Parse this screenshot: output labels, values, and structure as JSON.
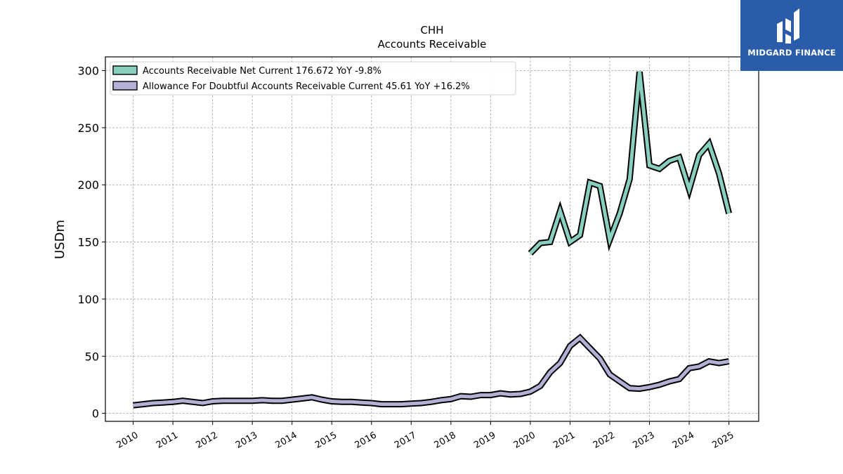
{
  "chart_data": {
    "type": "line",
    "title": "CHH",
    "subtitle": "Accounts Receivable",
    "ylabel": "USDm",
    "xlabel": "",
    "xlim": [
      2009.3,
      2025.75
    ],
    "ylim": [
      -7,
      312
    ],
    "yticks": [
      0,
      50,
      100,
      150,
      200,
      250,
      300
    ],
    "xticks": [
      "2010",
      "2011",
      "2012",
      "2013",
      "2014",
      "2015",
      "2016",
      "2017",
      "2018",
      "2019",
      "2020",
      "2021",
      "2022",
      "2023",
      "2024",
      "2025"
    ],
    "grid": true,
    "legend_position": "top-left",
    "series": [
      {
        "name": "Accounts Receivable Net Current",
        "legend_label": "Accounts Receivable Net Current  176.672 YoY -9.8%",
        "color": "#88cfc0",
        "points": [
          [
            2020.0,
            140
          ],
          [
            2020.25,
            149
          ],
          [
            2020.5,
            150
          ],
          [
            2020.75,
            177
          ],
          [
            2021.0,
            150
          ],
          [
            2021.25,
            156
          ],
          [
            2021.5,
            202
          ],
          [
            2021.75,
            199
          ],
          [
            2022.0,
            152
          ],
          [
            2022.25,
            175
          ],
          [
            2022.5,
            205
          ],
          [
            2022.75,
            299
          ],
          [
            2023.0,
            217
          ],
          [
            2023.25,
            214
          ],
          [
            2023.5,
            221
          ],
          [
            2023.75,
            224
          ],
          [
            2024.0,
            196
          ],
          [
            2024.25,
            226
          ],
          [
            2024.5,
            236
          ],
          [
            2024.75,
            210
          ],
          [
            2025.0,
            175
          ]
        ]
      },
      {
        "name": "Allowance For Doubtful Accounts Receivable Current",
        "legend_label": "Allowance For Doubtful Accounts Receivable Current  45.61 YoY +16.2%",
        "color": "#b3b0d6",
        "points": [
          [
            2010.0,
            7
          ],
          [
            2010.25,
            8
          ],
          [
            2010.5,
            9
          ],
          [
            2010.75,
            9.5
          ],
          [
            2011.0,
            10
          ],
          [
            2011.25,
            11
          ],
          [
            2011.5,
            10
          ],
          [
            2011.75,
            9
          ],
          [
            2012.0,
            10.5
          ],
          [
            2012.25,
            11
          ],
          [
            2012.5,
            11
          ],
          [
            2012.75,
            11
          ],
          [
            2013.0,
            11
          ],
          [
            2013.25,
            11.5
          ],
          [
            2013.5,
            11
          ],
          [
            2013.75,
            11
          ],
          [
            2014.0,
            12
          ],
          [
            2014.25,
            13
          ],
          [
            2014.5,
            14
          ],
          [
            2014.75,
            12
          ],
          [
            2015.0,
            10.5
          ],
          [
            2015.25,
            10
          ],
          [
            2015.5,
            10
          ],
          [
            2015.75,
            9.5
          ],
          [
            2016.0,
            9
          ],
          [
            2016.25,
            8
          ],
          [
            2016.5,
            8
          ],
          [
            2016.75,
            8
          ],
          [
            2017.0,
            8.5
          ],
          [
            2017.25,
            9
          ],
          [
            2017.5,
            10
          ],
          [
            2017.75,
            11.5
          ],
          [
            2018.0,
            12.5
          ],
          [
            2018.25,
            15
          ],
          [
            2018.5,
            14.5
          ],
          [
            2018.75,
            16
          ],
          [
            2019.0,
            16
          ],
          [
            2019.25,
            17.5
          ],
          [
            2019.5,
            16.5
          ],
          [
            2019.75,
            17
          ],
          [
            2020.0,
            19
          ],
          [
            2020.25,
            24
          ],
          [
            2020.5,
            36
          ],
          [
            2020.75,
            44
          ],
          [
            2021.0,
            59
          ],
          [
            2021.25,
            66
          ],
          [
            2021.5,
            57
          ],
          [
            2021.75,
            48
          ],
          [
            2022.0,
            34
          ],
          [
            2022.25,
            28
          ],
          [
            2022.5,
            22
          ],
          [
            2022.75,
            21.5
          ],
          [
            2023.0,
            23
          ],
          [
            2023.25,
            25
          ],
          [
            2023.5,
            28
          ],
          [
            2023.75,
            30
          ],
          [
            2024.0,
            39.5
          ],
          [
            2024.25,
            41
          ],
          [
            2024.5,
            45.5
          ],
          [
            2024.75,
            44
          ],
          [
            2025.0,
            45.5
          ]
        ]
      }
    ]
  },
  "logo": {
    "text": "MIDGARD FINANCE",
    "background": "#2a5caa",
    "icon": "midgard-logo-icon"
  }
}
